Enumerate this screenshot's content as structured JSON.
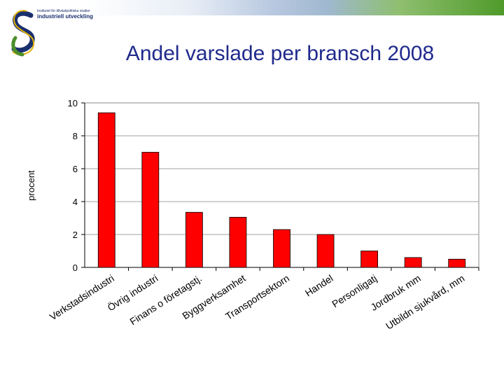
{
  "header": {
    "logo_line1": "Institutet för tillväxtpolitiska studier",
    "logo_line2": "industriell utveckling",
    "gradient_colors": [
      "#ffffff",
      "#b8c8e0",
      "#4f9a2a"
    ]
  },
  "colors": {
    "bar": "#ff0000",
    "title": "#1f2a8c",
    "logo_blue": "#1a2f6e",
    "logo_green": "#4b8f2a"
  },
  "chart_data": {
    "type": "bar",
    "title": "Andel varslade per bransch 2008",
    "xlabel": "",
    "ylabel": "procent",
    "ylim": [
      0,
      10
    ],
    "yticks": [
      0,
      2,
      4,
      6,
      8,
      10
    ],
    "grid": true,
    "categories": [
      "Verkstadsindustri",
      "Övrig industri",
      "Finans o företagstj.",
      "Byggverksamhet",
      "Transportsektorn",
      "Handel",
      "Personligatj",
      "Jordbruk mm",
      "Utbildn sjukvård, mm"
    ],
    "values": [
      9.4,
      7.0,
      3.35,
      3.05,
      2.3,
      2.0,
      1.0,
      0.6,
      0.5
    ]
  }
}
